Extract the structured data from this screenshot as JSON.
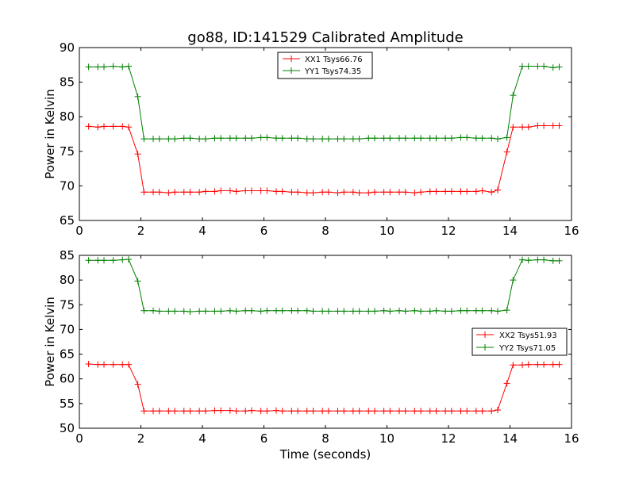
{
  "title": "go88, ID:141529 Calibrated Amplitude",
  "colors": {
    "XX": "#ff0000",
    "YY": "#008000"
  },
  "chart_data": [
    {
      "type": "line",
      "xlabel": "",
      "ylabel": "Power in Kelvin",
      "xlim": [
        0,
        16
      ],
      "ylim": [
        65,
        90
      ],
      "xticks": [
        0,
        2,
        4,
        6,
        8,
        10,
        12,
        14,
        16
      ],
      "yticks": [
        65,
        70,
        75,
        80,
        85,
        90
      ],
      "legend_position": "upper-center",
      "x": [
        0.3,
        0.6,
        0.8,
        1.1,
        1.4,
        1.6,
        1.9,
        2.1,
        2.4,
        2.6,
        2.9,
        3.1,
        3.4,
        3.6,
        3.9,
        4.1,
        4.4,
        4.6,
        4.9,
        5.1,
        5.4,
        5.6,
        5.9,
        6.1,
        6.4,
        6.6,
        6.9,
        7.1,
        7.4,
        7.6,
        7.9,
        8.1,
        8.4,
        8.6,
        8.9,
        9.1,
        9.4,
        9.6,
        9.9,
        10.1,
        10.4,
        10.6,
        10.9,
        11.1,
        11.4,
        11.6,
        11.9,
        12.1,
        12.4,
        12.6,
        12.9,
        13.1,
        13.4,
        13.6,
        13.9,
        14.1,
        14.4,
        14.6,
        14.9,
        15.1,
        15.4,
        15.6
      ],
      "series": [
        {
          "name": "XX1 Tsys66.76",
          "color_key": "XX",
          "values": [
            78.6,
            78.5,
            78.6,
            78.6,
            78.6,
            78.5,
            74.6,
            69.1,
            69.1,
            69.1,
            69.0,
            69.1,
            69.1,
            69.1,
            69.1,
            69.2,
            69.2,
            69.3,
            69.3,
            69.2,
            69.3,
            69.3,
            69.3,
            69.3,
            69.2,
            69.2,
            69.1,
            69.1,
            69.0,
            69.0,
            69.1,
            69.1,
            69.0,
            69.1,
            69.1,
            69.0,
            69.0,
            69.1,
            69.1,
            69.1,
            69.1,
            69.1,
            69.0,
            69.1,
            69.2,
            69.2,
            69.2,
            69.2,
            69.2,
            69.2,
            69.2,
            69.3,
            69.1,
            69.4,
            74.9,
            78.5,
            78.5,
            78.5,
            78.7,
            78.7,
            78.7,
            78.7
          ]
        },
        {
          "name": "YY1 Tsys74.35",
          "color_key": "YY",
          "values": [
            87.2,
            87.2,
            87.2,
            87.3,
            87.2,
            87.3,
            82.9,
            76.8,
            76.8,
            76.8,
            76.8,
            76.8,
            76.9,
            76.9,
            76.8,
            76.8,
            76.9,
            76.9,
            76.9,
            76.9,
            76.9,
            76.9,
            77.0,
            77.0,
            76.9,
            76.9,
            76.9,
            76.9,
            76.8,
            76.8,
            76.8,
            76.8,
            76.8,
            76.8,
            76.8,
            76.8,
            76.9,
            76.9,
            76.9,
            76.9,
            76.9,
            76.9,
            76.9,
            76.9,
            76.9,
            76.9,
            76.9,
            76.9,
            77.0,
            77.0,
            76.9,
            76.9,
            76.9,
            76.8,
            77.0,
            83.1,
            87.3,
            87.3,
            87.3,
            87.3,
            87.1,
            87.2
          ]
        }
      ]
    },
    {
      "type": "line",
      "xlabel": "Time (seconds)",
      "ylabel": "Power in Kelvin",
      "xlim": [
        0,
        16
      ],
      "ylim": [
        50,
        85
      ],
      "xticks": [
        0,
        2,
        4,
        6,
        8,
        10,
        12,
        14,
        16
      ],
      "yticks": [
        50,
        55,
        60,
        65,
        70,
        75,
        80,
        85
      ],
      "legend_position": "center-right",
      "x": [
        0.3,
        0.6,
        0.8,
        1.1,
        1.4,
        1.6,
        1.9,
        2.1,
        2.4,
        2.6,
        2.9,
        3.1,
        3.4,
        3.6,
        3.9,
        4.1,
        4.4,
        4.6,
        4.9,
        5.1,
        5.4,
        5.6,
        5.9,
        6.1,
        6.4,
        6.6,
        6.9,
        7.1,
        7.4,
        7.6,
        7.9,
        8.1,
        8.4,
        8.6,
        8.9,
        9.1,
        9.4,
        9.6,
        9.9,
        10.1,
        10.4,
        10.6,
        10.9,
        11.1,
        11.4,
        11.6,
        11.9,
        12.1,
        12.4,
        12.6,
        12.9,
        13.1,
        13.4,
        13.6,
        13.9,
        14.1,
        14.4,
        14.6,
        14.9,
        15.1,
        15.4,
        15.6
      ],
      "series": [
        {
          "name": "XX2 Tsys51.93",
          "color_key": "XX",
          "values": [
            63.0,
            62.9,
            62.9,
            62.9,
            62.9,
            62.9,
            58.9,
            53.5,
            53.5,
            53.5,
            53.5,
            53.5,
            53.5,
            53.5,
            53.5,
            53.5,
            53.6,
            53.6,
            53.6,
            53.5,
            53.5,
            53.6,
            53.5,
            53.5,
            53.6,
            53.5,
            53.5,
            53.5,
            53.5,
            53.5,
            53.5,
            53.5,
            53.5,
            53.5,
            53.5,
            53.5,
            53.5,
            53.5,
            53.5,
            53.5,
            53.5,
            53.5,
            53.5,
            53.5,
            53.5,
            53.5,
            53.5,
            53.5,
            53.5,
            53.5,
            53.5,
            53.5,
            53.5,
            53.7,
            59.1,
            62.8,
            62.8,
            62.9,
            62.9,
            62.9,
            62.9,
            62.9
          ]
        },
        {
          "name": "YY2 Tsys71.05",
          "color_key": "YY",
          "values": [
            84.0,
            84.0,
            84.0,
            84.0,
            84.1,
            84.2,
            79.8,
            73.8,
            73.8,
            73.7,
            73.7,
            73.7,
            73.7,
            73.6,
            73.7,
            73.7,
            73.7,
            73.7,
            73.8,
            73.7,
            73.8,
            73.8,
            73.7,
            73.8,
            73.8,
            73.8,
            73.8,
            73.8,
            73.8,
            73.7,
            73.7,
            73.7,
            73.7,
            73.7,
            73.7,
            73.7,
            73.7,
            73.7,
            73.8,
            73.7,
            73.8,
            73.7,
            73.8,
            73.7,
            73.7,
            73.8,
            73.7,
            73.7,
            73.8,
            73.8,
            73.8,
            73.8,
            73.8,
            73.7,
            73.9,
            80.0,
            84.1,
            84.0,
            84.1,
            84.1,
            83.9,
            83.9
          ]
        }
      ]
    }
  ]
}
